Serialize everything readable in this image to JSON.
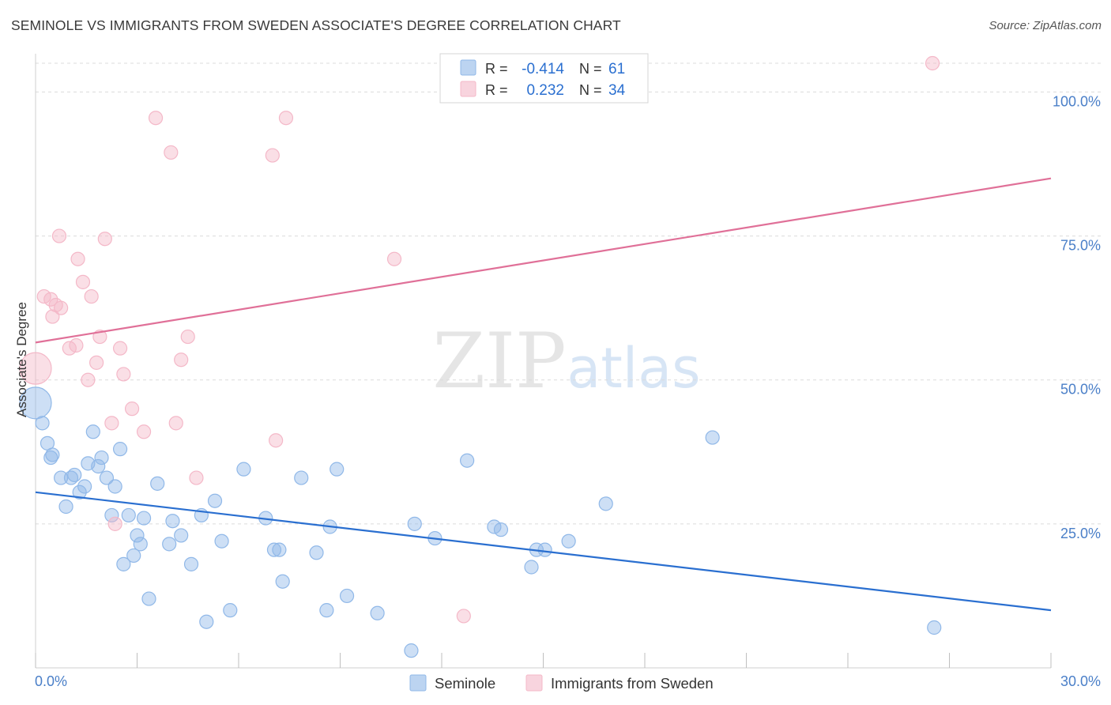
{
  "title": "SEMINOLE VS IMMIGRANTS FROM SWEDEN ASSOCIATE'S DEGREE CORRELATION CHART",
  "source": "Source: ZipAtlas.com",
  "watermark": {
    "zip": "ZIP",
    "atlas": "atlas"
  },
  "chart_data": {
    "type": "scatter",
    "title": "SEMINOLE VS IMMIGRANTS FROM SWEDEN ASSOCIATE'S DEGREE CORRELATION CHART",
    "xlabel": "",
    "ylabel": "Associate's Degree",
    "xlim": [
      0,
      30
    ],
    "ylim": [
      0,
      105
    ],
    "x_tick_labels": [
      "0.0%",
      "30.0%"
    ],
    "y_ticks": [
      25,
      50,
      75,
      100
    ],
    "y_tick_labels": [
      "25.0%",
      "50.0%",
      "75.0%",
      "100.0%"
    ],
    "grid": true,
    "legend_position": "bottom",
    "stats_box_position": "top-center",
    "series": [
      {
        "name": "Seminole",
        "color": "#90b8e8",
        "line_color": "#2a6fd0",
        "r_label": "R =",
        "r_value": "-0.414",
        "n_label": "N =",
        "n_value": "61",
        "trend": {
          "x": [
            0,
            30
          ],
          "y": [
            30.5,
            10.0
          ]
        },
        "points": [
          {
            "x": 0.0,
            "y": 46.0,
            "big": true
          },
          {
            "x": 0.2,
            "y": 42.5
          },
          {
            "x": 0.35,
            "y": 39.0
          },
          {
            "x": 0.5,
            "y": 37.0
          },
          {
            "x": 0.45,
            "y": 36.5
          },
          {
            "x": 0.75,
            "y": 33.0
          },
          {
            "x": 0.9,
            "y": 28.0
          },
          {
            "x": 1.05,
            "y": 33.0
          },
          {
            "x": 1.15,
            "y": 33.5
          },
          {
            "x": 1.3,
            "y": 30.5
          },
          {
            "x": 1.45,
            "y": 31.5
          },
          {
            "x": 1.55,
            "y": 35.5
          },
          {
            "x": 1.7,
            "y": 41.0
          },
          {
            "x": 1.85,
            "y": 35.0
          },
          {
            "x": 1.95,
            "y": 36.5
          },
          {
            "x": 2.1,
            "y": 33.0
          },
          {
            "x": 2.25,
            "y": 26.5
          },
          {
            "x": 2.35,
            "y": 31.5
          },
          {
            "x": 2.5,
            "y": 38.0
          },
          {
            "x": 2.6,
            "y": 18.0
          },
          {
            "x": 2.75,
            "y": 26.5
          },
          {
            "x": 2.9,
            "y": 19.5
          },
          {
            "x": 3.0,
            "y": 23.0
          },
          {
            "x": 3.1,
            "y": 21.5
          },
          {
            "x": 3.2,
            "y": 26.0
          },
          {
            "x": 3.35,
            "y": 12.0
          },
          {
            "x": 3.6,
            "y": 32.0
          },
          {
            "x": 3.95,
            "y": 21.5
          },
          {
            "x": 4.05,
            "y": 25.5
          },
          {
            "x": 4.3,
            "y": 23.0
          },
          {
            "x": 4.6,
            "y": 18.0
          },
          {
            "x": 4.9,
            "y": 26.5
          },
          {
            "x": 5.05,
            "y": 8.0
          },
          {
            "x": 5.3,
            "y": 29.0
          },
          {
            "x": 5.5,
            "y": 22.0
          },
          {
            "x": 5.75,
            "y": 10.0
          },
          {
            "x": 6.15,
            "y": 34.5
          },
          {
            "x": 6.8,
            "y": 26.0
          },
          {
            "x": 7.05,
            "y": 20.5
          },
          {
            "x": 7.2,
            "y": 20.5
          },
          {
            "x": 7.3,
            "y": 15.0
          },
          {
            "x": 7.85,
            "y": 33.0
          },
          {
            "x": 8.3,
            "y": 20.0
          },
          {
            "x": 8.6,
            "y": 10.0
          },
          {
            "x": 8.7,
            "y": 24.5
          },
          {
            "x": 8.9,
            "y": 34.5
          },
          {
            "x": 9.2,
            "y": 12.5
          },
          {
            "x": 10.1,
            "y": 9.5
          },
          {
            "x": 11.1,
            "y": 3.0
          },
          {
            "x": 11.2,
            "y": 25.0
          },
          {
            "x": 11.8,
            "y": 22.5
          },
          {
            "x": 12.75,
            "y": 36.0
          },
          {
            "x": 13.55,
            "y": 24.5
          },
          {
            "x": 13.75,
            "y": 24.0
          },
          {
            "x": 14.65,
            "y": 17.5
          },
          {
            "x": 14.8,
            "y": 20.5
          },
          {
            "x": 15.05,
            "y": 20.5
          },
          {
            "x": 15.75,
            "y": 22.0
          },
          {
            "x": 16.85,
            "y": 28.5
          },
          {
            "x": 20.0,
            "y": 40.0
          },
          {
            "x": 26.55,
            "y": 7.0
          }
        ]
      },
      {
        "name": "Immigrants from Sweden",
        "color": "#f4b8c8",
        "line_color": "#e07098",
        "r_label": "R =",
        "r_value": "0.232",
        "n_label": "N =",
        "n_value": "34",
        "trend": {
          "x": [
            0,
            30
          ],
          "y": [
            56.5,
            85.0
          ]
        },
        "points": [
          {
            "x": 0.0,
            "y": 52.0,
            "big": true
          },
          {
            "x": 0.25,
            "y": 64.5
          },
          {
            "x": 0.45,
            "y": 64.0
          },
          {
            "x": 0.5,
            "y": 61.0
          },
          {
            "x": 0.6,
            "y": 63.0
          },
          {
            "x": 0.75,
            "y": 62.5
          },
          {
            "x": 0.7,
            "y": 75.0
          },
          {
            "x": 1.0,
            "y": 55.5
          },
          {
            "x": 1.2,
            "y": 56.0
          },
          {
            "x": 1.25,
            "y": 71.0
          },
          {
            "x": 1.4,
            "y": 67.0
          },
          {
            "x": 1.55,
            "y": 50.0
          },
          {
            "x": 1.65,
            "y": 64.5
          },
          {
            "x": 1.8,
            "y": 53.0
          },
          {
            "x": 1.9,
            "y": 57.5
          },
          {
            "x": 2.05,
            "y": 74.5
          },
          {
            "x": 2.25,
            "y": 42.5
          },
          {
            "x": 2.35,
            "y": 25.0
          },
          {
            "x": 2.5,
            "y": 55.5
          },
          {
            "x": 2.6,
            "y": 51.0
          },
          {
            "x": 2.85,
            "y": 45.0
          },
          {
            "x": 3.2,
            "y": 41.0
          },
          {
            "x": 3.55,
            "y": 95.5
          },
          {
            "x": 4.0,
            "y": 89.5
          },
          {
            "x": 4.15,
            "y": 42.5
          },
          {
            "x": 4.3,
            "y": 53.5
          },
          {
            "x": 4.5,
            "y": 57.5
          },
          {
            "x": 4.75,
            "y": 33.0
          },
          {
            "x": 7.0,
            "y": 89.0
          },
          {
            "x": 7.1,
            "y": 39.5
          },
          {
            "x": 7.4,
            "y": 95.5
          },
          {
            "x": 10.6,
            "y": 71.0
          },
          {
            "x": 12.65,
            "y": 9.0
          },
          {
            "x": 26.5,
            "y": 105.0
          }
        ]
      }
    ]
  }
}
